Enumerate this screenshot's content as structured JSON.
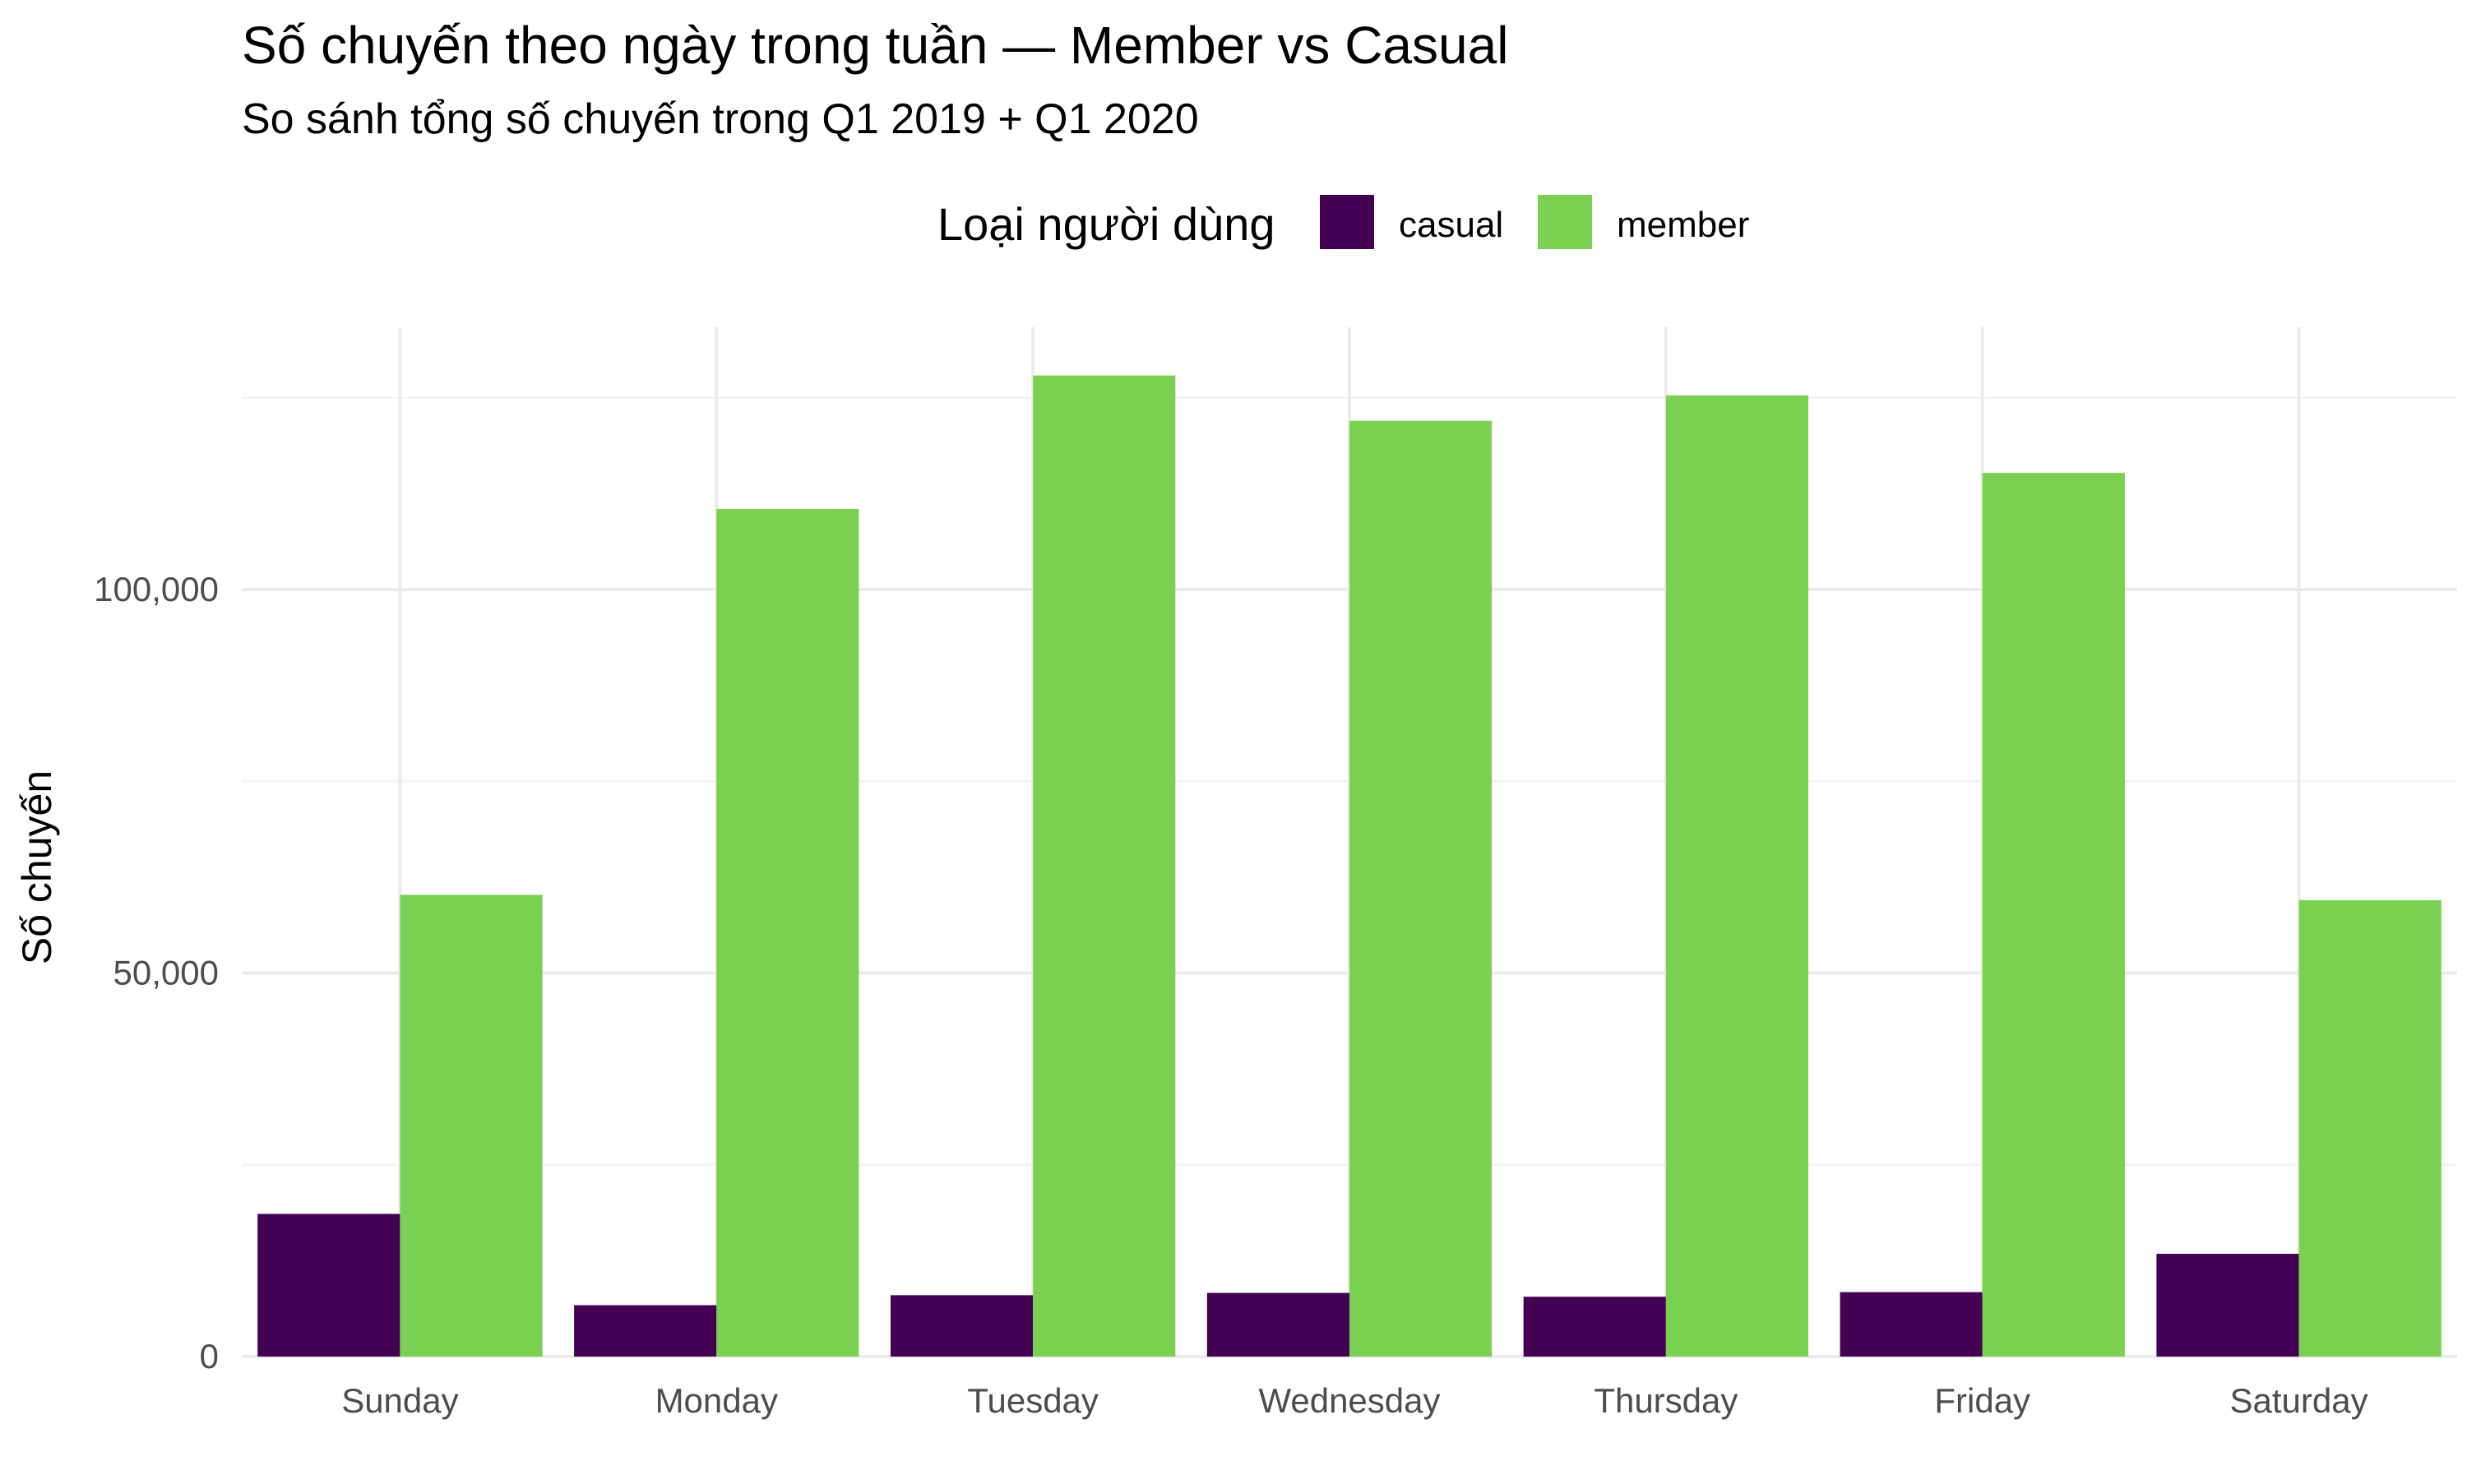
{
  "chart_data": {
    "type": "bar",
    "title": "Số chuyến theo ngày trong tuần — Member vs Casual",
    "subtitle": "So sánh tổng số chuyến trong Q1 2019 + Q1 2020",
    "xlabel": "",
    "ylabel": "Số chuyến",
    "categories": [
      "Sunday",
      "Monday",
      "Tuesday",
      "Wednesday",
      "Thursday",
      "Friday",
      "Saturday"
    ],
    "series": [
      {
        "name": "casual",
        "color": "#440154",
        "values": [
          18600,
          6700,
          8000,
          8300,
          7800,
          8400,
          13400
        ]
      },
      {
        "name": "member",
        "color": "#7ad151",
        "values": [
          60200,
          110500,
          127900,
          122000,
          125300,
          115200,
          59500
        ]
      }
    ],
    "ylim": [
      0,
      135000
    ],
    "yticks": [
      0,
      50000,
      100000
    ],
    "ytick_labels": [
      "0",
      "50,000",
      "100,000"
    ],
    "grid": true,
    "legend": {
      "title": "Loại người dùng",
      "position": "top"
    }
  }
}
